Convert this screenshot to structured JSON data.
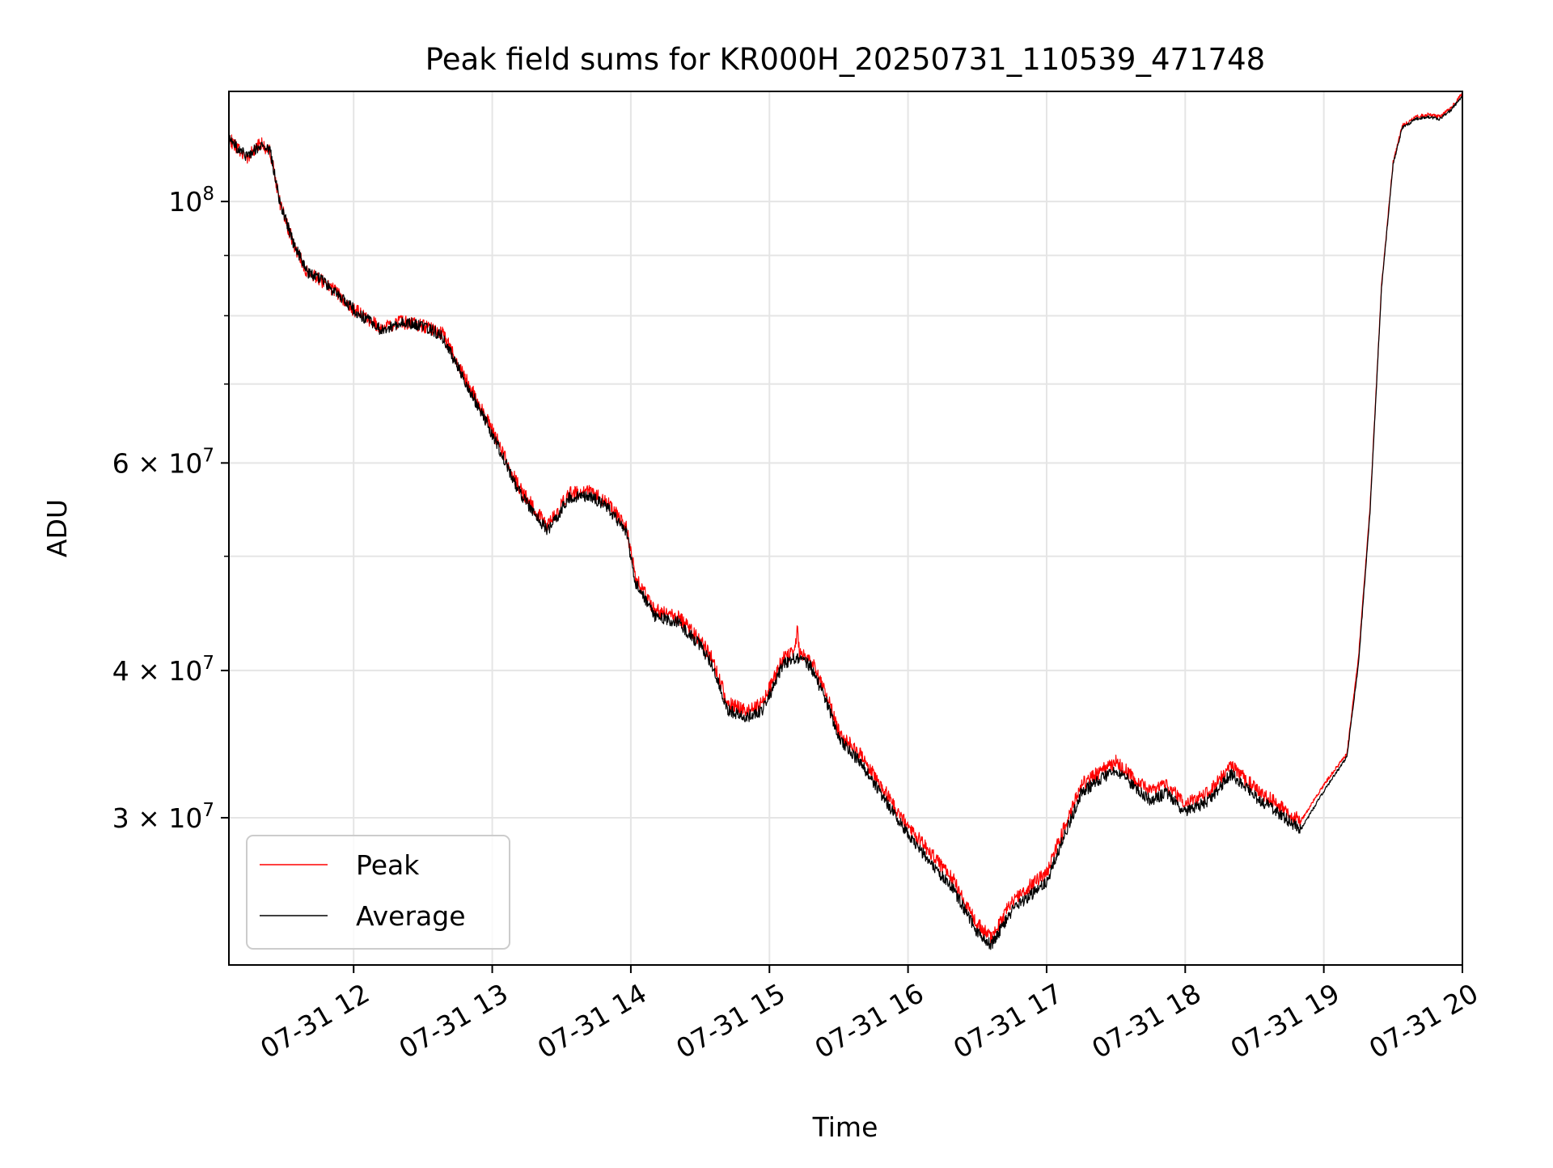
{
  "chart_data": {
    "type": "line",
    "title": "Peak field sums for KR000H_20250731_110539_471748",
    "xlabel": "Time",
    "ylabel": "ADU",
    "xscale": "time",
    "yscale": "log",
    "xlim": [
      "2025-07-31 11:06",
      "2025-07-31 20:00"
    ],
    "ylim": [
      22500000,
      124000000
    ],
    "grid": true,
    "legend_position": "lower left",
    "x_ticks": [
      "2025-07-31 12:00",
      "2025-07-31 13:00",
      "2025-07-31 14:00",
      "2025-07-31 15:00",
      "2025-07-31 16:00",
      "2025-07-31 17:00",
      "2025-07-31 18:00",
      "2025-07-31 19:00",
      "2025-07-31 20:00"
    ],
    "x_tick_labels": [
      "07-31 12",
      "07-31 13",
      "07-31 14",
      "07-31 15",
      "07-31 16",
      "07-31 17",
      "07-31 18",
      "07-31 19",
      "07-31 20"
    ],
    "y_ticks": [
      100000000,
      60000000,
      40000000,
      30000000
    ],
    "y_tick_labels": [
      {
        "mantissa": "",
        "base": "10",
        "exp": "8"
      },
      {
        "mantissa": "6",
        "base": "10",
        "exp": "7"
      },
      {
        "mantissa": "4",
        "base": "10",
        "exp": "7"
      },
      {
        "mantissa": "3",
        "base": "10",
        "exp": "7"
      }
    ],
    "y_minor_ticks": [
      90000000,
      80000000,
      70000000,
      50000000
    ],
    "series": [
      {
        "name": "Peak",
        "color": "#ff0000",
        "x": [
          "2025-07-31 11:06",
          "2025-07-31 11:14",
          "2025-07-31 11:20",
          "2025-07-31 11:24",
          "2025-07-31 11:28",
          "2025-07-31 11:34",
          "2025-07-31 11:40",
          "2025-07-31 11:45",
          "2025-07-31 11:50",
          "2025-07-31 12:00",
          "2025-07-31 12:13",
          "2025-07-31 12:20",
          "2025-07-31 12:30",
          "2025-07-31 12:38",
          "2025-07-31 12:45",
          "2025-07-31 13:00",
          "2025-07-31 13:12",
          "2025-07-31 13:24",
          "2025-07-31 13:33",
          "2025-07-31 13:42",
          "2025-07-31 13:50",
          "2025-07-31 13:58",
          "2025-07-31 14:02",
          "2025-07-31 14:10",
          "2025-07-31 14:20",
          "2025-07-31 14:30",
          "2025-07-31 14:35",
          "2025-07-31 14:42",
          "2025-07-31 14:50",
          "2025-07-31 14:57",
          "2025-07-31 15:06",
          "2025-07-31 15:11",
          "2025-07-31 15:12",
          "2025-07-31 15:13",
          "2025-07-31 15:18",
          "2025-07-31 15:25",
          "2025-07-31 15:30",
          "2025-07-31 15:40",
          "2025-07-31 16:00",
          "2025-07-31 16:20",
          "2025-07-31 16:30",
          "2025-07-31 16:36",
          "2025-07-31 16:45",
          "2025-07-31 17:00",
          "2025-07-31 17:15",
          "2025-07-31 17:30",
          "2025-07-31 17:45",
          "2025-07-31 17:52",
          "2025-07-31 18:00",
          "2025-07-31 18:10",
          "2025-07-31 18:20",
          "2025-07-31 18:30",
          "2025-07-31 18:45",
          "2025-07-31 18:50",
          "2025-07-31 19:00",
          "2025-07-31 19:10",
          "2025-07-31 19:15",
          "2025-07-31 19:20",
          "2025-07-31 19:25",
          "2025-07-31 19:30",
          "2025-07-31 19:34",
          "2025-07-31 19:40",
          "2025-07-31 19:45",
          "2025-07-31 19:50",
          "2025-07-31 19:55",
          "2025-07-31 20:00"
        ],
        "y": [
          113000000,
          109000000,
          112000000,
          110000000,
          100000000,
          92000000,
          87000000,
          86000000,
          84500000,
          81000000,
          78000000,
          79000000,
          78500000,
          77500000,
          73000000,
          64000000,
          57000000,
          53000000,
          56500000,
          56800000,
          55500000,
          53000000,
          48000000,
          45000000,
          44500000,
          42500000,
          41000000,
          37500000,
          37000000,
          37500000,
          41000000,
          41500000,
          43500000,
          41500000,
          40800000,
          38000000,
          35500000,
          33800000,
          29500000,
          26500000,
          24400000,
          23700000,
          25500000,
          27000000,
          32000000,
          33500000,
          31500000,
          32000000,
          30800000,
          31500000,
          33200000,
          31800000,
          30300000,
          29800000,
          32000000,
          34000000,
          41000000,
          55000000,
          85000000,
          108000000,
          116000000,
          118000000,
          118500000,
          118000000,
          120000000,
          123500000
        ]
      },
      {
        "name": "Average",
        "color": "#000000",
        "x": [
          "2025-07-31 11:06",
          "2025-07-31 11:14",
          "2025-07-31 11:20",
          "2025-07-31 11:24",
          "2025-07-31 11:28",
          "2025-07-31 11:34",
          "2025-07-31 11:40",
          "2025-07-31 11:45",
          "2025-07-31 11:50",
          "2025-07-31 12:00",
          "2025-07-31 12:13",
          "2025-07-31 12:20",
          "2025-07-31 12:30",
          "2025-07-31 12:38",
          "2025-07-31 12:45",
          "2025-07-31 13:00",
          "2025-07-31 13:12",
          "2025-07-31 13:24",
          "2025-07-31 13:33",
          "2025-07-31 13:42",
          "2025-07-31 13:50",
          "2025-07-31 13:58",
          "2025-07-31 14:02",
          "2025-07-31 14:10",
          "2025-07-31 14:20",
          "2025-07-31 14:30",
          "2025-07-31 14:35",
          "2025-07-31 14:42",
          "2025-07-31 14:50",
          "2025-07-31 14:57",
          "2025-07-31 15:06",
          "2025-07-31 15:11",
          "2025-07-31 15:12",
          "2025-07-31 15:13",
          "2025-07-31 15:18",
          "2025-07-31 15:25",
          "2025-07-31 15:30",
          "2025-07-31 15:40",
          "2025-07-31 16:00",
          "2025-07-31 16:20",
          "2025-07-31 16:30",
          "2025-07-31 16:36",
          "2025-07-31 16:45",
          "2025-07-31 17:00",
          "2025-07-31 17:15",
          "2025-07-31 17:30",
          "2025-07-31 17:45",
          "2025-07-31 17:52",
          "2025-07-31 18:00",
          "2025-07-31 18:10",
          "2025-07-31 18:20",
          "2025-07-31 18:30",
          "2025-07-31 18:45",
          "2025-07-31 18:50",
          "2025-07-31 19:00",
          "2025-07-31 19:10",
          "2025-07-31 19:15",
          "2025-07-31 19:20",
          "2025-07-31 19:25",
          "2025-07-31 19:30",
          "2025-07-31 19:34",
          "2025-07-31 19:40",
          "2025-07-31 19:45",
          "2025-07-31 19:50",
          "2025-07-31 19:55",
          "2025-07-31 20:00"
        ],
        "y": [
          113000000,
          109000000,
          112000000,
          110000000,
          100000000,
          92000000,
          87000000,
          86000000,
          84500000,
          81000000,
          77500000,
          79000000,
          78500000,
          77000000,
          72500000,
          63500000,
          56500000,
          52500000,
          56000000,
          56300000,
          55000000,
          52500000,
          47500000,
          44500000,
          44000000,
          42000000,
          40500000,
          37000000,
          36500000,
          37000000,
          40500000,
          41000000,
          41000000,
          41000000,
          40300000,
          37500000,
          35000000,
          33300000,
          29000000,
          26000000,
          24000000,
          23400000,
          25000000,
          26500000,
          31500000,
          33000000,
          31000000,
          31500000,
          30300000,
          31000000,
          32700000,
          31300000,
          29800000,
          29300000,
          31600000,
          33800000,
          40500000,
          54500000,
          84500000,
          107500000,
          115500000,
          117500000,
          118000000,
          117500000,
          119500000,
          123000000
        ]
      }
    ]
  }
}
